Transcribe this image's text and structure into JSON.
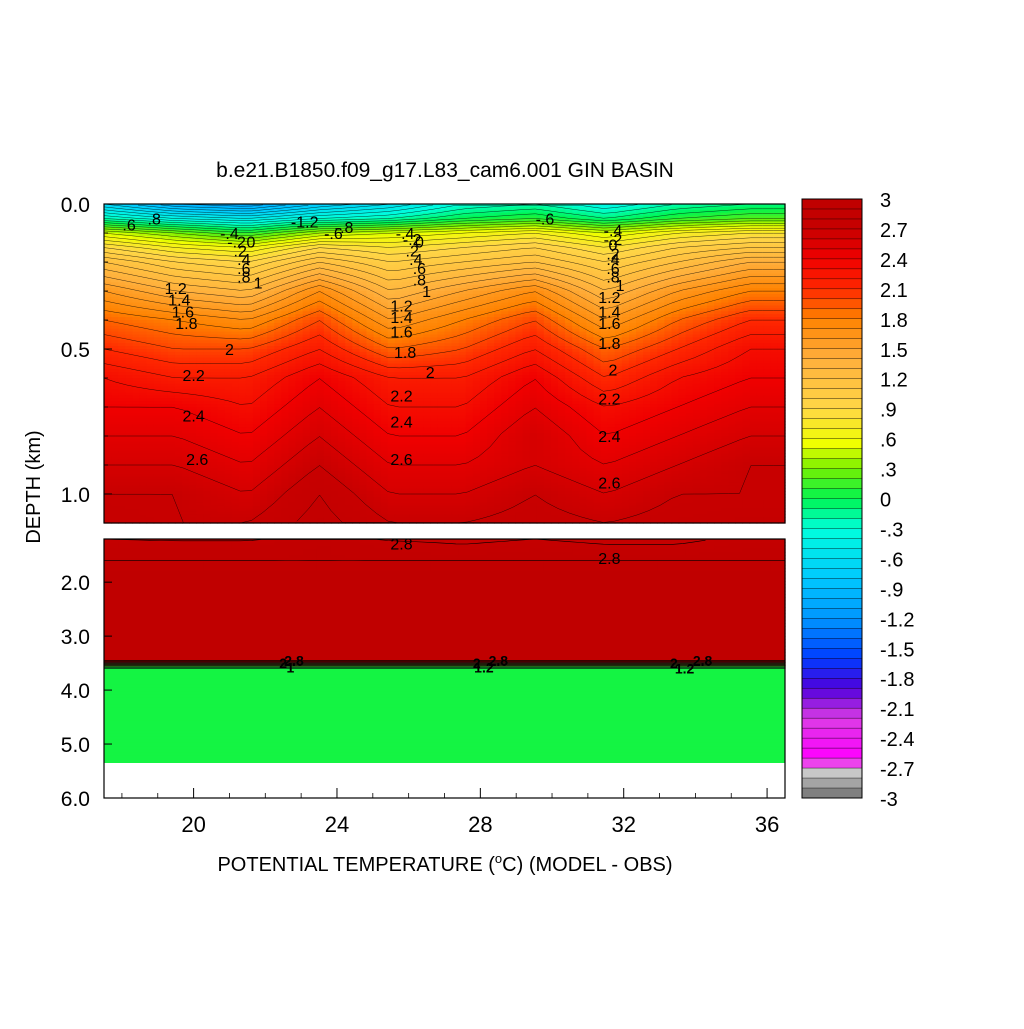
{
  "chart_data": {
    "type": "heatmap",
    "title": "b.e21.B1850.f09_g17.L83_cam6.001 GIN BASIN",
    "xlabel_main": "POTENTIAL TEMPERATURE (",
    "xlabel_sup": "o",
    "xlabel_rest": "C) (MODEL - OBS)",
    "ylabel": "DEPTH (km)",
    "x_range": [
      17.5,
      36.5
    ],
    "x_ticks": [
      "20",
      "24",
      "28",
      "32",
      "36"
    ],
    "upper_panel": {
      "y_range": [
        0.0,
        1.1
      ],
      "y_ticks": [
        "0.0",
        "0.5",
        "1.0"
      ]
    },
    "lower_panel": {
      "y_range": [
        1.2,
        6.0
      ],
      "y_ticks": [
        "2.0",
        "3.0",
        "4.0",
        "5.0",
        "6.0"
      ],
      "filled_bottom_depth": 5.35,
      "deep_band_value": 0.05,
      "transition_depth": [
        3.45,
        3.6
      ]
    },
    "colorbar": {
      "min": -3,
      "max": 3,
      "step": 0.1,
      "labels": [
        "3",
        "2.7",
        "2.4",
        "2.1",
        "1.8",
        "1.5",
        "1.2",
        ".9",
        ".6",
        ".3",
        "0",
        "-.3",
        "-.6",
        "-.9",
        "-1.2",
        "-1.5",
        "-1.8",
        "-2.1",
        "-2.4",
        "-2.7",
        "-3"
      ]
    },
    "profiles": {
      "x": [
        17.5,
        19.5,
        21.5,
        23.5,
        25.5,
        27.5,
        29.5,
        31.5,
        33.5,
        35.5,
        36.5
      ],
      "depth_km": [
        0.0,
        0.05,
        0.1,
        0.15,
        0.2,
        0.3,
        0.4,
        0.5,
        0.6,
        0.7,
        0.8,
        0.9,
        1.0,
        1.1,
        1.3,
        1.6,
        2.0,
        2.5,
        3.0,
        3.4
      ],
      "values": [
        [
          -0.7,
          -1.0,
          -1.1,
          -0.8,
          -0.6,
          -0.3,
          -0.2,
          -0.4,
          -0.2,
          -0.1,
          -0.1
        ],
        [
          -0.2,
          -0.4,
          -0.5,
          -0.3,
          -0.2,
          0.0,
          0.1,
          -0.1,
          0.1,
          0.2,
          0.2
        ],
        [
          0.5,
          0.3,
          0.1,
          0.4,
          0.5,
          0.6,
          0.7,
          0.5,
          0.7,
          0.8,
          0.8
        ],
        [
          0.9,
          0.7,
          0.6,
          0.9,
          0.8,
          0.9,
          1.0,
          0.8,
          1.0,
          1.1,
          1.1
        ],
        [
          1.2,
          1.0,
          0.9,
          1.2,
          1.0,
          1.1,
          1.2,
          1.0,
          1.2,
          1.4,
          1.4
        ],
        [
          1.6,
          1.4,
          1.3,
          1.7,
          1.3,
          1.5,
          1.7,
          1.3,
          1.6,
          1.8,
          1.8
        ],
        [
          1.9,
          1.8,
          1.7,
          2.0,
          1.6,
          1.8,
          2.0,
          1.6,
          1.9,
          2.1,
          2.1
        ],
        [
          2.1,
          2.0,
          2.0,
          2.2,
          1.9,
          2.0,
          2.2,
          1.9,
          2.1,
          2.3,
          2.3
        ],
        [
          2.3,
          2.2,
          2.2,
          2.4,
          2.2,
          2.2,
          2.4,
          2.1,
          2.3,
          2.4,
          2.4
        ],
        [
          2.4,
          2.4,
          2.3,
          2.5,
          2.3,
          2.3,
          2.5,
          2.3,
          2.4,
          2.5,
          2.5
        ],
        [
          2.5,
          2.5,
          2.4,
          2.6,
          2.4,
          2.4,
          2.6,
          2.4,
          2.5,
          2.6,
          2.6
        ],
        [
          2.6,
          2.6,
          2.5,
          2.7,
          2.5,
          2.5,
          2.6,
          2.5,
          2.6,
          2.7,
          2.7
        ],
        [
          2.7,
          2.7,
          2.6,
          2.8,
          2.6,
          2.6,
          2.7,
          2.6,
          2.7,
          2.7,
          2.7
        ],
        [
          2.75,
          2.7,
          2.7,
          2.85,
          2.7,
          2.7,
          2.75,
          2.7,
          2.75,
          2.8,
          2.8
        ],
        [
          2.85,
          2.85,
          2.85,
          2.9,
          2.85,
          2.8,
          2.85,
          2.8,
          2.8,
          2.85,
          2.85
        ],
        [
          2.9,
          2.9,
          2.9,
          2.9,
          2.9,
          2.9,
          2.9,
          2.9,
          2.9,
          2.9,
          2.9
        ],
        [
          2.95,
          2.95,
          2.95,
          2.95,
          2.95,
          2.95,
          2.95,
          2.95,
          2.95,
          2.95,
          2.95
        ],
        [
          2.95,
          2.95,
          2.95,
          2.95,
          2.95,
          2.95,
          2.95,
          2.95,
          2.95,
          2.95,
          2.95
        ],
        [
          2.95,
          2.95,
          2.95,
          2.95,
          2.95,
          2.95,
          2.95,
          2.95,
          2.95,
          2.95,
          2.95
        ],
        [
          2.95,
          2.95,
          2.95,
          2.95,
          2.95,
          2.95,
          2.95,
          2.95,
          2.95,
          2.95,
          2.95
        ]
      ]
    },
    "contour_labels": [
      {
        "text": ".6",
        "x": 18.2,
        "depth": 0.07
      },
      {
        "text": ".8",
        "x": 18.9,
        "depth": 0.05
      },
      {
        "text": "-.4",
        "x": 21.0,
        "depth": 0.1
      },
      {
        "text": "-.2",
        "x": 21.2,
        "depth": 0.13
      },
      {
        "text": "0",
        "x": 21.6,
        "depth": 0.13
      },
      {
        "text": ".2",
        "x": 21.3,
        "depth": 0.16
      },
      {
        "text": ".4",
        "x": 21.4,
        "depth": 0.19
      },
      {
        "text": ".6",
        "x": 21.4,
        "depth": 0.22
      },
      {
        "text": ".8",
        "x": 21.4,
        "depth": 0.25
      },
      {
        "text": "1",
        "x": 21.8,
        "depth": 0.27
      },
      {
        "text": "1.2",
        "x": 19.5,
        "depth": 0.29
      },
      {
        "text": "1.4",
        "x": 19.6,
        "depth": 0.33
      },
      {
        "text": "1.6",
        "x": 19.7,
        "depth": 0.37
      },
      {
        "text": "1.8",
        "x": 19.8,
        "depth": 0.41
      },
      {
        "text": "2",
        "x": 21.0,
        "depth": 0.5
      },
      {
        "text": "2.2",
        "x": 20.0,
        "depth": 0.59
      },
      {
        "text": "2.4",
        "x": 20.0,
        "depth": 0.73
      },
      {
        "text": "2.6",
        "x": 20.1,
        "depth": 0.88
      },
      {
        "text": "-1.2",
        "x": 23.1,
        "depth": 0.06
      },
      {
        "text": "-.6",
        "x": 23.9,
        "depth": 0.1
      },
      {
        "text": "-.8",
        "x": 24.2,
        "depth": 0.08
      },
      {
        "text": "-.4",
        "x": 25.9,
        "depth": 0.1
      },
      {
        "text": "-.2",
        "x": 26.1,
        "depth": 0.12
      },
      {
        "text": "0",
        "x": 26.3,
        "depth": 0.13
      },
      {
        "text": ".2",
        "x": 26.1,
        "depth": 0.16
      },
      {
        "text": ".4",
        "x": 26.2,
        "depth": 0.19
      },
      {
        "text": ".6",
        "x": 26.3,
        "depth": 0.22
      },
      {
        "text": ".8",
        "x": 26.3,
        "depth": 0.26
      },
      {
        "text": "1",
        "x": 26.5,
        "depth": 0.3
      },
      {
        "text": "1.2",
        "x": 25.8,
        "depth": 0.35
      },
      {
        "text": "1.4",
        "x": 25.8,
        "depth": 0.39
      },
      {
        "text": "1.6",
        "x": 25.8,
        "depth": 0.44
      },
      {
        "text": "1.8",
        "x": 25.9,
        "depth": 0.51
      },
      {
        "text": "2",
        "x": 26.6,
        "depth": 0.58
      },
      {
        "text": "2.2",
        "x": 25.8,
        "depth": 0.66
      },
      {
        "text": "2.4",
        "x": 25.8,
        "depth": 0.75
      },
      {
        "text": "2.6",
        "x": 25.8,
        "depth": 0.88
      },
      {
        "text": "-.6",
        "x": 29.8,
        "depth": 0.05
      },
      {
        "text": "-.4",
        "x": 31.7,
        "depth": 0.09
      },
      {
        "text": "-.2",
        "x": 31.7,
        "depth": 0.12
      },
      {
        "text": "0",
        "x": 31.7,
        "depth": 0.14
      },
      {
        "text": ".2",
        "x": 31.7,
        "depth": 0.17
      },
      {
        "text": ".4",
        "x": 31.7,
        "depth": 0.19
      },
      {
        "text": ".6",
        "x": 31.7,
        "depth": 0.22
      },
      {
        "text": ".8",
        "x": 31.7,
        "depth": 0.25
      },
      {
        "text": "1",
        "x": 31.9,
        "depth": 0.28
      },
      {
        "text": "1.2",
        "x": 31.6,
        "depth": 0.32
      },
      {
        "text": "1.4",
        "x": 31.6,
        "depth": 0.37
      },
      {
        "text": "1.6",
        "x": 31.6,
        "depth": 0.41
      },
      {
        "text": "1.8",
        "x": 31.6,
        "depth": 0.48
      },
      {
        "text": "2",
        "x": 31.7,
        "depth": 0.57
      },
      {
        "text": "2.2",
        "x": 31.6,
        "depth": 0.67
      },
      {
        "text": "2.4",
        "x": 31.6,
        "depth": 0.8
      },
      {
        "text": "2.6",
        "x": 31.6,
        "depth": 0.96
      },
      {
        "text": "2.8",
        "x": 25.8,
        "depth": 1.28
      },
      {
        "text": "2.8",
        "x": 31.6,
        "depth": 1.55
      }
    ],
    "deep_labels": [
      {
        "text": "2.8",
        "x": 22.8,
        "depth": 3.45
      },
      {
        "text": "2",
        "x": 22.5,
        "depth": 3.5
      },
      {
        "text": "1",
        "x": 22.7,
        "depth": 3.58
      },
      {
        "text": "2.8",
        "x": 28.5,
        "depth": 3.45
      },
      {
        "text": "2",
        "x": 27.9,
        "depth": 3.5
      },
      {
        "text": "1.2",
        "x": 28.1,
        "depth": 3.58
      },
      {
        "text": "2.8",
        "x": 34.2,
        "depth": 3.45
      },
      {
        "text": "2",
        "x": 33.4,
        "depth": 3.5
      },
      {
        "text": "1.2",
        "x": 33.7,
        "depth": 3.6
      }
    ]
  }
}
